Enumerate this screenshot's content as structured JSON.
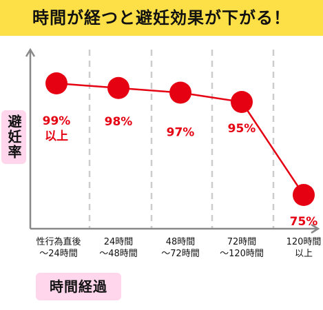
{
  "header": {
    "title": "時間が経つと避妊効果が下がる！",
    "band_color": "#fde047"
  },
  "chart_data": {
    "type": "line",
    "title": "時間が経つと避妊効果が下がる！",
    "xlabel": "時間経過",
    "ylabel": "避妊率",
    "categories": [
      [
        "性行為直後",
        "〜24時間"
      ],
      [
        "24時間",
        "〜48時間"
      ],
      [
        "48時間",
        "〜72時間"
      ],
      [
        "72時間",
        "〜120時間"
      ],
      [
        "120時間",
        "以上"
      ]
    ],
    "series": [
      {
        "values": [
          99,
          98,
          97,
          95,
          75
        ],
        "color": "#e50012"
      }
    ],
    "data_labels": [
      [
        "99%",
        "以上"
      ],
      [
        "98%"
      ],
      [
        "97%"
      ],
      [
        "95%"
      ],
      [
        "75%"
      ]
    ],
    "grid": "vertical-dashed",
    "axis_ticks": false
  },
  "colors": {
    "accent": "#e50012",
    "label_box": "#ffd6ec",
    "axis": "#888888",
    "grid": "#cccccc"
  }
}
